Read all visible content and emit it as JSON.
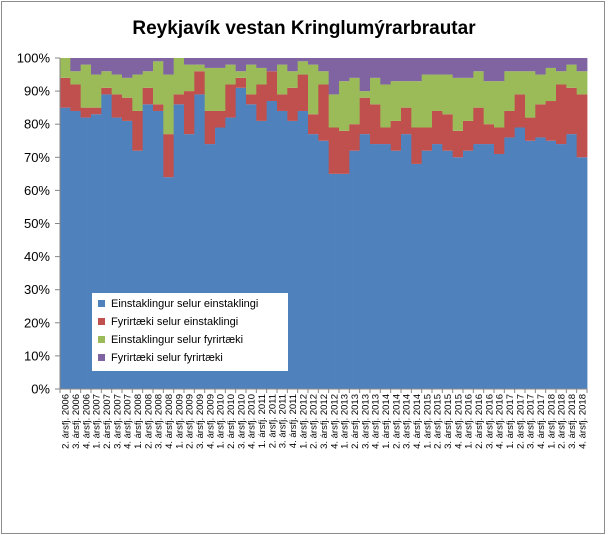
{
  "chart_data": {
    "type": "bar",
    "stacked": "percent",
    "title": "Reykjavík vestan Kringlumýrarbrautar",
    "ylim": [
      0,
      100
    ],
    "yticks": [
      "0%",
      "10%",
      "20%",
      "30%",
      "40%",
      "50%",
      "60%",
      "70%",
      "80%",
      "90%",
      "100%"
    ],
    "legend": "inside-bottom-left",
    "categories": [
      "2. ársfj. 2006",
      "3. ársfj. 2006",
      "4. ársfj. 2006",
      "1. ársfj. 2007",
      "2. ársfj. 2007",
      "3. ársfj. 2007",
      "4. ársfj. 2007",
      "1. ársfj. 2008",
      "2. ársfj. 2008",
      "3. ársfj. 2008",
      "4. ársfj. 2008",
      "1. ársfj. 2009",
      "2. ársfj. 2009",
      "3. ársfj. 2009",
      "4. ársfj. 2009",
      "1. ársfj. 2010",
      "2. ársfj. 2010",
      "3. ársfj. 2010",
      "4. ársfj. 2010",
      "1. ársfj. 2011",
      "2. ársfj. 2011",
      "3. ársfj. 2011",
      "4. ársfj. 2011",
      "1. ársfj. 2012",
      "2. ársfj. 2012",
      "3. ársfj. 2012",
      "4. ársfj. 2012",
      "1. ársfj. 2013",
      "2. ársfj. 2013",
      "3. ársfj. 2013",
      "4. ársfj. 2013",
      "1. ársfj. 2014",
      "2. ársfj. 2014",
      "3. ársfj. 2014",
      "4. ársfj. 2014",
      "1. ársfj. 2015",
      "2. ársfj. 2015",
      "3. ársfj. 2015",
      "4. ársfj. 2015",
      "1. ársfj. 2016",
      "2. ársfj. 2016",
      "3. ársfj. 2016",
      "4. ársfj. 2016",
      "1. ársfj. 2017",
      "2. ársfj. 2017",
      "3. ársfj. 2017",
      "4. ársfj. 2017",
      "1. ársfj. 2018",
      "2. ársfj. 2018",
      "3. ársfj. 2018",
      "4. ársfj. 2018"
    ],
    "series": [
      {
        "name": "Einstaklingur selur einstaklingi",
        "color": "#4f81bd",
        "values": [
          85,
          84,
          82,
          83,
          89,
          82,
          81,
          72,
          86,
          84,
          64,
          86,
          77,
          89,
          74,
          79,
          82,
          91,
          86,
          81,
          87,
          84,
          81,
          84,
          77,
          75,
          65,
          65,
          72,
          77,
          74,
          74,
          72,
          77,
          68,
          72,
          74,
          72,
          70,
          72,
          74,
          74,
          71,
          76,
          79,
          75,
          76,
          75,
          74,
          77,
          70
        ]
      },
      {
        "name": "Fyrirtæki selur einstaklingi",
        "color": "#c0504d",
        "values": [
          9,
          8,
          3,
          2,
          2,
          7,
          7,
          12,
          5,
          2,
          13,
          3,
          13,
          7,
          10,
          5,
          10,
          3,
          3,
          11,
          9,
          5,
          10,
          11,
          6,
          17,
          14,
          13,
          8,
          11,
          12,
          5,
          9,
          8,
          11,
          7,
          10,
          11,
          8,
          9,
          11,
          6,
          8,
          8,
          10,
          7,
          10,
          12,
          18,
          14,
          19
        ]
      },
      {
        "name": "Einstaklingur selur fyrirtæki",
        "color": "#9bbb59",
        "values": [
          6,
          4,
          13,
          10,
          5,
          6,
          6,
          11,
          5,
          13,
          18,
          11,
          8,
          2,
          13,
          13,
          6,
          2,
          9,
          5,
          0,
          9,
          5,
          4,
          15,
          4,
          10,
          15,
          14,
          2,
          8,
          13,
          12,
          8,
          14,
          16,
          11,
          12,
          16,
          13,
          11,
          13,
          14,
          12,
          7,
          14,
          9,
          10,
          4,
          7,
          7
        ]
      },
      {
        "name": "Fyrirtæki selur fyrirtæki",
        "color": "#8064a2",
        "values": [
          0,
          4,
          2,
          5,
          4,
          5,
          6,
          5,
          4,
          1,
          5,
          0,
          2,
          2,
          3,
          3,
          2,
          4,
          2,
          3,
          4,
          2,
          4,
          1,
          2,
          4,
          11,
          7,
          6,
          10,
          6,
          8,
          7,
          7,
          7,
          5,
          5,
          5,
          6,
          6,
          4,
          7,
          7,
          4,
          4,
          4,
          5,
          3,
          4,
          2,
          4
        ]
      }
    ]
  }
}
